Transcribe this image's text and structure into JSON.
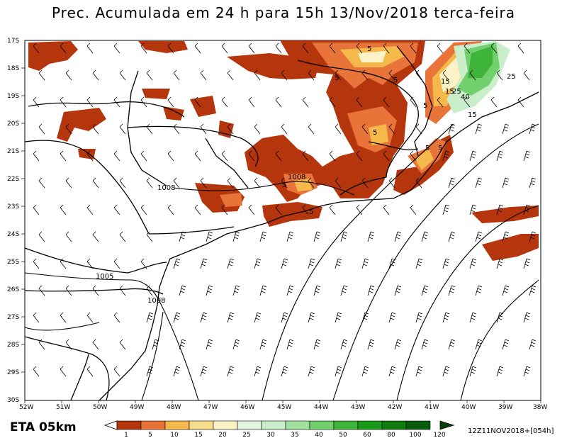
{
  "title": "Prec. Acumulada em 24 h para 15h 13/Nov/2018 terca-feira",
  "model_label": "ETA 05km",
  "run_label": "12Z11NOV2018+[054h]",
  "lat_labels": [
    "17S",
    "18S",
    "19S",
    "20S",
    "21S",
    "22S",
    "23S",
    "24S",
    "25S",
    "26S",
    "27S",
    "28S",
    "29S",
    "30S"
  ],
  "lon_labels": [
    "52W",
    "51W",
    "50W",
    "49W",
    "48W",
    "47W",
    "46W",
    "45W",
    "44W",
    "43W",
    "42W",
    "41W",
    "40W",
    "39W",
    "38W"
  ],
  "isobar_labels": [
    "1008",
    "1008",
    "1005",
    "1008"
  ],
  "precip_labels": [
    "5",
    "5",
    "5",
    "5",
    "5",
    "5",
    "5",
    "5",
    "15",
    "15",
    "15",
    "25",
    "25",
    "40",
    "5"
  ],
  "colorbar": {
    "ticks": [
      "1",
      "5",
      "10",
      "15",
      "20",
      "25",
      "30",
      "35",
      "40",
      "50",
      "60",
      "80",
      "100",
      "120"
    ],
    "colors": [
      "#ffffff",
      "#b5350c",
      "#e8743a",
      "#f5b84a",
      "#f8de8a",
      "#fbf3c6",
      "#e1f5e1",
      "#c9eec9",
      "#9fe09f",
      "#72cf6e",
      "#3fb43a",
      "#1a9a18",
      "#0e7a10",
      "#0a5c0d",
      "#063f08"
    ]
  }
}
